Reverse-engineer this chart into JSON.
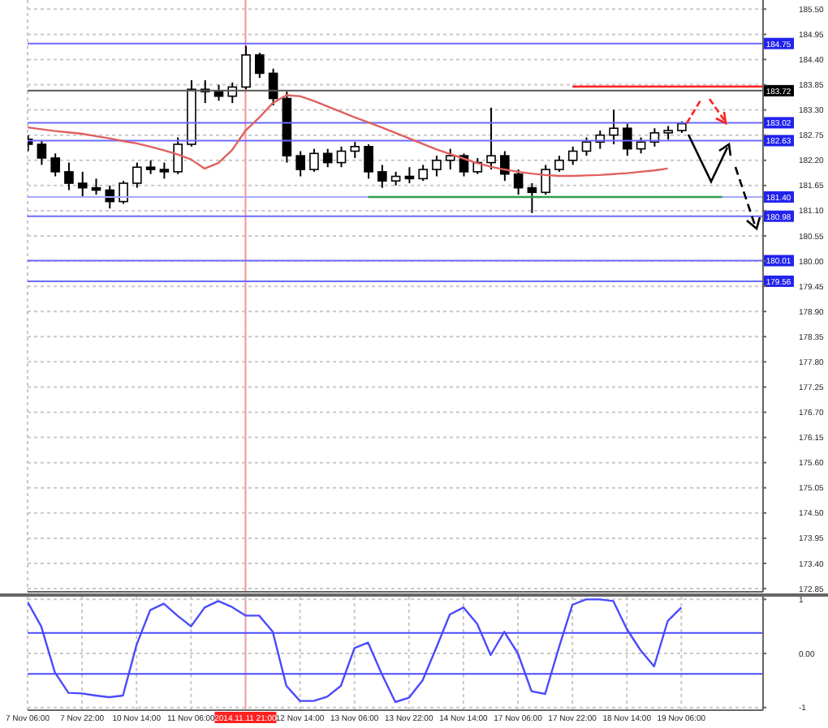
{
  "chart_data": [
    {
      "type": "candlestick",
      "categories": [
        "7 Nov 06:00",
        null,
        null,
        null,
        "7 Nov 22:00",
        null,
        null,
        null,
        "10 Nov 14:00",
        null,
        null,
        null,
        "11 Nov 06:00",
        null,
        null,
        null,
        "2014.11.11 21:00",
        null,
        null,
        null,
        "12 Nov 14:00",
        null,
        null,
        null,
        "13 Nov 06:00",
        null,
        null,
        null,
        "13 Nov 22:00",
        null,
        null,
        null,
        "14 Nov 14:00",
        null,
        null,
        null,
        "17 Nov 06:00",
        null,
        null,
        null,
        "17 Nov 22:00",
        null,
        null,
        null,
        "18 Nov 14:00",
        null,
        null,
        null,
        "19 Nov 06:00",
        null,
        null,
        null,
        null,
        null,
        null
      ],
      "color": "#000000",
      "ohlc": [
        [
          182.66,
          182.75,
          182.4,
          182.55
        ],
        [
          182.55,
          182.62,
          182.1,
          182.25
        ],
        [
          182.25,
          182.35,
          181.85,
          181.95
        ],
        [
          181.95,
          182.15,
          181.55,
          181.7
        ],
        [
          181.7,
          181.95,
          181.4,
          181.6
        ],
        [
          181.6,
          181.8,
          181.45,
          181.55
        ],
        [
          181.55,
          181.65,
          181.15,
          181.3
        ],
        [
          181.3,
          181.75,
          181.25,
          181.7
        ],
        [
          181.7,
          182.15,
          181.6,
          182.05
        ],
        [
          182.05,
          182.2,
          181.9,
          182.0
        ],
        [
          182.0,
          182.15,
          181.8,
          181.95
        ],
        [
          181.95,
          182.7,
          181.9,
          182.55
        ],
        [
          182.55,
          183.95,
          182.5,
          183.75
        ],
        [
          183.75,
          183.95,
          183.45,
          183.7
        ],
        [
          183.7,
          183.85,
          183.5,
          183.6
        ],
        [
          183.6,
          183.9,
          183.45,
          183.8
        ],
        [
          183.8,
          184.7,
          183.75,
          184.5
        ],
        [
          184.5,
          184.55,
          184.0,
          184.1
        ],
        [
          184.1,
          184.2,
          183.4,
          183.55
        ],
        [
          183.55,
          183.7,
          182.15,
          182.3
        ],
        [
          182.3,
          182.4,
          181.85,
          182.0
        ],
        [
          182.0,
          182.45,
          181.95,
          182.35
        ],
        [
          182.35,
          182.45,
          182.05,
          182.15
        ],
        [
          182.15,
          182.5,
          182.05,
          182.4
        ],
        [
          182.4,
          182.6,
          182.25,
          182.5
        ],
        [
          182.5,
          182.55,
          181.8,
          181.95
        ],
        [
          181.95,
          182.1,
          181.6,
          181.75
        ],
        [
          181.75,
          181.95,
          181.65,
          181.85
        ],
        [
          181.85,
          182.05,
          181.7,
          181.8
        ],
        [
          181.8,
          182.1,
          181.75,
          182.0
        ],
        [
          182.0,
          182.3,
          181.85,
          182.2
        ],
        [
          182.2,
          182.45,
          182.0,
          182.3
        ],
        [
          182.3,
          182.35,
          181.85,
          181.95
        ],
        [
          181.95,
          182.25,
          181.9,
          182.15
        ],
        [
          182.15,
          183.35,
          182.0,
          182.3
        ],
        [
          182.3,
          182.4,
          181.75,
          181.9
        ],
        [
          181.9,
          182.0,
          181.45,
          181.6
        ],
        [
          181.6,
          181.7,
          181.05,
          181.5
        ],
        [
          181.5,
          182.1,
          181.45,
          182.0
        ],
        [
          182.0,
          182.3,
          181.95,
          182.2
        ],
        [
          182.2,
          182.5,
          182.1,
          182.4
        ],
        [
          182.4,
          182.7,
          182.3,
          182.6
        ],
        [
          182.6,
          182.85,
          182.45,
          182.75
        ],
        [
          182.75,
          183.3,
          182.55,
          182.9
        ],
        [
          182.9,
          183.0,
          182.3,
          182.45
        ],
        [
          182.45,
          182.7,
          182.35,
          182.6
        ],
        [
          182.6,
          182.9,
          182.5,
          182.8
        ],
        [
          182.8,
          182.95,
          182.65,
          182.85
        ],
        [
          182.85,
          183.05,
          182.8,
          183.0
        ],
        null,
        null,
        null,
        null,
        null,
        null
      ],
      "series": [
        {
          "type": "line",
          "color": "#e06060",
          "values": [
            182.92,
            182.88,
            182.84,
            182.81,
            182.78,
            182.73,
            182.68,
            182.62,
            182.57,
            182.5,
            182.42,
            182.33,
            182.22,
            182.02,
            182.14,
            182.42,
            182.85,
            183.13,
            183.45,
            183.62,
            183.6,
            183.5,
            183.38,
            183.26,
            183.14,
            183.03,
            182.92,
            182.8,
            182.68,
            182.56,
            182.44,
            182.34,
            182.24,
            182.14,
            182.06,
            182.0,
            181.95,
            181.91,
            181.88,
            181.86,
            181.86,
            181.87,
            181.88,
            181.9,
            181.92,
            181.95,
            181.98,
            182.02,
            null,
            null,
            null,
            null,
            null,
            null,
            null
          ]
        },
        {
          "type": "line",
          "color": "#2e9e4e",
          "values": [
            null,
            null,
            null,
            null,
            null,
            null,
            null,
            null,
            null,
            null,
            null,
            null,
            null,
            null,
            null,
            null,
            null,
            null,
            null,
            null,
            null,
            null,
            null,
            null,
            null,
            181.4,
            null,
            null,
            null,
            null,
            null,
            null,
            null,
            null,
            null,
            null,
            null,
            null,
            null,
            null,
            null,
            null,
            null,
            null,
            null,
            null,
            null,
            null,
            null,
            null,
            null,
            181.4,
            null,
            null,
            null
          ]
        },
        {
          "type": "line",
          "color": "#ff2020",
          "values": [
            null,
            null,
            null,
            null,
            null,
            null,
            null,
            null,
            null,
            null,
            null,
            null,
            null,
            null,
            null,
            null,
            null,
            null,
            null,
            null,
            null,
            null,
            null,
            null,
            null,
            null,
            null,
            null,
            null,
            null,
            null,
            null,
            null,
            null,
            null,
            null,
            null,
            null,
            null,
            null,
            183.81,
            null,
            null,
            null,
            null,
            null,
            null,
            null,
            null,
            null,
            null,
            null,
            null,
            null,
            183.81
          ]
        }
      ],
      "ylim": [
        172.78,
        185.7
      ],
      "yticks": [
        {
          "value": 172.85,
          "label": "172.85"
        },
        {
          "value": 173.4,
          "label": "173.40"
        },
        {
          "value": 173.95,
          "label": "173.95"
        },
        {
          "value": 174.5,
          "label": "174.50"
        },
        {
          "value": 175.05,
          "label": "175.05"
        },
        {
          "value": 175.6,
          "label": "175.60"
        },
        {
          "value": 176.15,
          "label": "176.15"
        },
        {
          "value": 176.7,
          "label": "176.70"
        },
        {
          "value": 177.25,
          "label": "177.25"
        },
        {
          "value": 177.8,
          "label": "177.80"
        },
        {
          "value": 178.35,
          "label": "178.35"
        },
        {
          "value": 178.9,
          "label": "178.90"
        },
        {
          "value": 179.45,
          "label": "179.45"
        },
        {
          "value": 180.0,
          "label": "180.00"
        },
        {
          "value": 180.55,
          "label": "180.55"
        },
        {
          "value": 181.1,
          "label": "181.10"
        },
        {
          "value": 181.65,
          "label": "181.65"
        },
        {
          "value": 182.2,
          "label": "182.20"
        },
        {
          "value": 182.75,
          "label": "182.75"
        },
        {
          "value": 183.3,
          "label": "183.30"
        },
        {
          "value": 183.85,
          "label": "183.85"
        },
        {
          "value": 184.4,
          "label": "184.40"
        },
        {
          "value": 184.95,
          "label": "184.95"
        },
        {
          "value": 185.5,
          "label": "185.50"
        }
      ],
      "ref_lines": [
        {
          "axis": "y",
          "value": 184.75,
          "label": "184.75",
          "color": "#6a6aff"
        },
        {
          "axis": "y",
          "value": 183.72,
          "label": "183.72",
          "color": "#555555"
        },
        {
          "axis": "y",
          "value": 183.02,
          "label": "183.02",
          "color": "#6a6aff"
        },
        {
          "axis": "y",
          "value": 182.63,
          "label": "182.63",
          "color": "#6a6aff"
        },
        {
          "axis": "y",
          "value": 181.4,
          "label": "181.40",
          "color": "#a8a8ff"
        },
        {
          "axis": "y",
          "value": 180.98,
          "label": "180.98",
          "color": "#6a6aff"
        },
        {
          "axis": "y",
          "value": 180.01,
          "label": "180.01",
          "color": "#6a6aff"
        },
        {
          "axis": "y",
          "value": 179.56,
          "label": "179.56",
          "color": "#6a6aff"
        },
        {
          "axis": "x",
          "value": "2014.11.11 21:00",
          "color": "#ff9090"
        }
      ],
      "grid": true,
      "marker": "none",
      "tick_labels": "y"
    },
    {
      "type": "line",
      "categories": [
        "7 Nov 06:00",
        null,
        null,
        null,
        "7 Nov 22:00",
        null,
        null,
        null,
        "10 Nov 14:00",
        null,
        null,
        null,
        "11 Nov 06:00",
        null,
        null,
        null,
        "2014.11.11 21:00",
        null,
        null,
        null,
        "12 Nov 14:00",
        null,
        null,
        null,
        "13 Nov 06:00",
        null,
        null,
        null,
        "13 Nov 22:00",
        null,
        null,
        null,
        "14 Nov 14:00",
        null,
        null,
        null,
        "17 Nov 06:00",
        null,
        null,
        null,
        "17 Nov 22:00",
        null,
        null,
        null,
        "18 Nov 14:00",
        null,
        null,
        null,
        "19 Nov 06:00",
        null,
        null,
        null,
        null,
        null,
        null
      ],
      "series": [
        {
          "color": "#4a4aff",
          "values": [
            0.95,
            0.5,
            -0.35,
            -0.73,
            -0.74,
            -0.78,
            -0.81,
            -0.78,
            0.16,
            0.8,
            0.92,
            0.7,
            0.5,
            0.85,
            0.97,
            0.86,
            0.7,
            0.7,
            0.4,
            -0.6,
            -0.88,
            -0.88,
            -0.8,
            -0.6,
            0.1,
            0.2,
            -0.38,
            -0.9,
            -0.82,
            -0.5,
            0.1,
            0.72,
            0.85,
            0.55,
            -0.03,
            0.4,
            0.0,
            -0.7,
            -0.75,
            0.1,
            0.9,
            1.0,
            1.0,
            0.97,
            0.45,
            0.06,
            -0.24,
            0.6,
            0.85,
            null,
            null,
            null,
            null,
            null,
            null
          ]
        }
      ],
      "ylim": [
        -1.05,
        1.05
      ],
      "yticks": [
        1,
        {
          "value": 0,
          "label": "0.00"
        },
        -1
      ],
      "ref_lines": [
        {
          "axis": "y",
          "value": 0.38,
          "color": "#4a4aff"
        },
        {
          "axis": "y",
          "value": -0.38,
          "color": "#4a4aff"
        },
        {
          "axis": "x",
          "value": "2014.11.11 21:00",
          "color": "#ff9090"
        }
      ],
      "grid": true,
      "marker": "none"
    }
  ]
}
